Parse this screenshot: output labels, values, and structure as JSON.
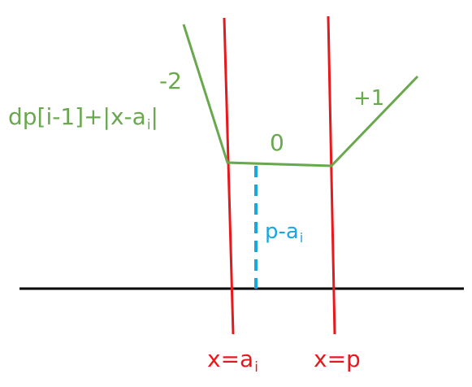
{
  "colors": {
    "green": "#6aa84f",
    "red": "#e8191c",
    "blue": "#1aa7e0",
    "black": "#000000"
  },
  "labels": {
    "function_prefix": "dp[i-1]+|x-a",
    "function_sub": "i",
    "function_suffix": "|",
    "slope_left": "-2",
    "slope_middle": "0",
    "slope_right": "+1",
    "distance_prefix": "p-a",
    "distance_sub": "i",
    "line_a_prefix": "x=a",
    "line_a_sub": "i",
    "line_p": "x=p"
  }
}
